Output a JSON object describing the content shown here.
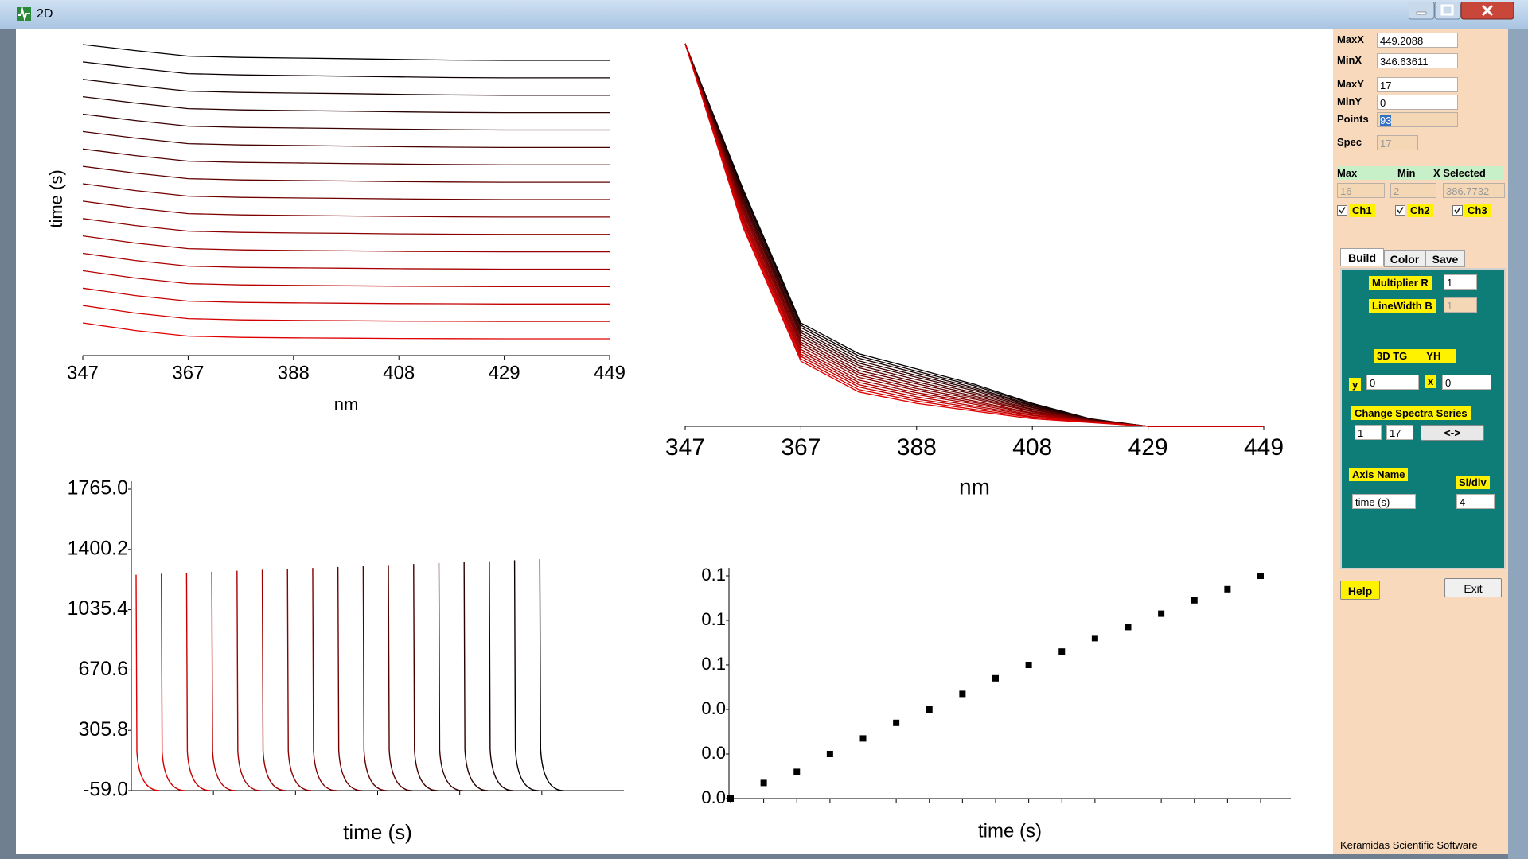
{
  "window": {
    "title": "2D"
  },
  "chart_data": [
    {
      "type": "waterfall",
      "ylabel": "time (s)",
      "xlabel": "nm",
      "xlim": [
        346.63611,
        449.2088
      ],
      "xticks": [
        {
          "value": 346.636,
          "label": "347"
        },
        {
          "value": 367.151,
          "label": "367"
        },
        {
          "value": 387.665,
          "label": "388"
        },
        {
          "value": 408.18,
          "label": "408"
        },
        {
          "value": 428.694,
          "label": "429"
        },
        {
          "value": 449.209,
          "label": "449"
        }
      ]
    },
    {
      "type": "line",
      "xlabel": "nm",
      "xlim": [
        346.63611,
        449.2088
      ],
      "ylim": [
        0,
        1
      ],
      "xticks": [
        {
          "value": 346.636,
          "label": "347"
        },
        {
          "value": 367.151,
          "label": "367"
        },
        {
          "value": 387.665,
          "label": "388"
        },
        {
          "value": 408.18,
          "label": "408"
        },
        {
          "value": 428.694,
          "label": "429"
        },
        {
          "value": 449.209,
          "label": "449"
        }
      ],
      "x": [
        346.636,
        356.894,
        367.151,
        377.408,
        387.665,
        397.922,
        408.18,
        418.437,
        428.694,
        438.951,
        449.209
      ],
      "series": [
        {
          "color": "#000000",
          "values": [
            1,
            0.62,
            0.27,
            0.19,
            0.15,
            0.11,
            0.06,
            0.02,
            0,
            0,
            0
          ]
        },
        {
          "color": "#0e0000",
          "values": [
            1,
            0.614,
            0.264,
            0.184,
            0.144,
            0.106,
            0.058,
            0.019,
            0,
            0,
            0
          ]
        },
        {
          "color": "#1c0000",
          "values": [
            1,
            0.608,
            0.258,
            0.178,
            0.139,
            0.101,
            0.055,
            0.019,
            0,
            0,
            0
          ]
        },
        {
          "color": "#2a0000",
          "values": [
            1,
            0.601,
            0.251,
            0.171,
            0.133,
            0.097,
            0.053,
            0.018,
            0,
            0,
            0
          ]
        },
        {
          "color": "#380000",
          "values": [
            1,
            0.595,
            0.245,
            0.165,
            0.128,
            0.093,
            0.05,
            0.018,
            0,
            0,
            0
          ]
        },
        {
          "color": "#460000",
          "values": [
            1,
            0.589,
            0.239,
            0.159,
            0.122,
            0.088,
            0.048,
            0.017,
            0,
            0,
            0
          ]
        },
        {
          "color": "#540000",
          "values": [
            1,
            0.583,
            0.233,
            0.153,
            0.116,
            0.084,
            0.045,
            0.016,
            0,
            0,
            0
          ]
        },
        {
          "color": "#620000",
          "values": [
            1,
            0.576,
            0.226,
            0.146,
            0.111,
            0.079,
            0.043,
            0.016,
            0,
            0,
            0
          ]
        },
        {
          "color": "#700000",
          "values": [
            1,
            0.57,
            0.22,
            0.14,
            0.105,
            0.075,
            0.04,
            0.015,
            0,
            0,
            0
          ]
        },
        {
          "color": "#7e0000",
          "values": [
            1,
            0.564,
            0.214,
            0.134,
            0.099,
            0.071,
            0.038,
            0.014,
            0,
            0,
            0
          ]
        },
        {
          "color": "#8c0000",
          "values": [
            1,
            0.558,
            0.208,
            0.128,
            0.094,
            0.066,
            0.035,
            0.014,
            0,
            0,
            0
          ]
        },
        {
          "color": "#9a0000",
          "values": [
            1,
            0.551,
            0.201,
            0.121,
            0.088,
            0.062,
            0.033,
            0.013,
            0,
            0,
            0
          ]
        },
        {
          "color": "#a80000",
          "values": [
            1,
            0.545,
            0.195,
            0.115,
            0.083,
            0.058,
            0.03,
            0.013,
            0,
            0,
            0
          ]
        },
        {
          "color": "#b60000",
          "values": [
            1,
            0.539,
            0.189,
            0.109,
            0.077,
            0.053,
            0.028,
            0.012,
            0,
            0,
            0
          ]
        },
        {
          "color": "#c40000",
          "values": [
            1,
            0.533,
            0.183,
            0.103,
            0.071,
            0.049,
            0.025,
            0.011,
            0,
            0,
            0
          ]
        },
        {
          "color": "#d20000",
          "values": [
            1,
            0.526,
            0.176,
            0.096,
            0.066,
            0.044,
            0.023,
            0.011,
            0,
            0,
            0
          ]
        },
        {
          "color": "#e00000",
          "values": [
            1,
            0.52,
            0.17,
            0.09,
            0.06,
            0.04,
            0.02,
            0.01,
            0,
            0,
            0
          ]
        }
      ]
    },
    {
      "type": "kinetics",
      "xlabel": "time (s)",
      "ylim": [
        -59,
        1765
      ],
      "yticks": [
        {
          "value": 1765,
          "label": "1765.0"
        },
        {
          "value": 1400.2,
          "label": "1400.2"
        },
        {
          "value": 1035.4,
          "label": "1035.4"
        },
        {
          "value": 670.6,
          "label": "670.6"
        },
        {
          "value": 305.8,
          "label": "305.8"
        },
        {
          "value": -59,
          "label": "-59.0"
        }
      ],
      "values": [
        1247,
        1253,
        1259,
        1265,
        1271,
        1277,
        1283,
        1288,
        1294,
        1300,
        1306,
        1312,
        1318,
        1324,
        1329,
        1335,
        1341
      ],
      "colors": [
        "#e00000",
        "#d20000",
        "#c40000",
        "#b60000",
        "#a80000",
        "#9a0000",
        "#8c0000",
        "#7e0000",
        "#700000",
        "#620000",
        "#540000",
        "#460000",
        "#380000",
        "#2a0000",
        "#1c0000",
        "#0e0000",
        "#000000"
      ]
    },
    {
      "type": "scatter",
      "xlabel": "time (s)",
      "ylim": [
        0,
        0.1
      ],
      "color": "#000000",
      "yticks": [
        {
          "value": 0,
          "label": "0.0"
        },
        {
          "value": 0.02,
          "label": "0.0"
        },
        {
          "value": 0.04,
          "label": "0.0"
        },
        {
          "value": 0.06,
          "label": "0.1"
        },
        {
          "value": 0.08,
          "label": "0.1"
        },
        {
          "value": 0.1,
          "label": "0.1"
        }
      ],
      "categories": [
        null,
        null,
        null,
        null,
        null,
        null,
        null,
        null,
        null,
        null,
        null,
        null,
        null,
        null,
        null,
        null,
        null
      ],
      "values": [
        0,
        0.007,
        0.012,
        0.02,
        0.027,
        0.034,
        0.04,
        0.047,
        0.054,
        0.06,
        0.066,
        0.072,
        0.077,
        0.083,
        0.089,
        0.094,
        0.1
      ]
    }
  ],
  "panel": {
    "fields": [
      {
        "label": "MaxX",
        "value": "449.2088"
      },
      {
        "label": "MinX",
        "value": "346.63611"
      },
      {
        "label": "MaxY",
        "value": "17"
      },
      {
        "label": "MinY",
        "value": "0"
      },
      {
        "label": "Points",
        "value": "93"
      },
      {
        "label": "Spec",
        "value": "17"
      }
    ],
    "header": [
      "Max",
      "Min",
      "X Selected"
    ],
    "selected": [
      "16",
      "2",
      "386.7732"
    ],
    "channels": [
      "Ch1",
      "Ch2",
      "Ch3"
    ],
    "tabs": [
      "Build",
      "Color",
      "Save"
    ],
    "build": {
      "multiplier_label": "Multiplier R",
      "multiplier": "1",
      "linewidth_label": "LineWidth B",
      "linewidth": "1",
      "mode_labels": [
        "3D TG",
        "YH"
      ],
      "y_label": "y",
      "y": "0",
      "x_label": "x",
      "x": "0",
      "series_label": "Change Spectra Series",
      "series_from": "1",
      "series_to": "17",
      "swap": "<->",
      "axis_name_label": "Axis Name",
      "axis_name": "time (s)",
      "sldiv_label": "Sl/div",
      "sldiv": "4"
    },
    "buttons": [
      "Help",
      "Exit"
    ]
  },
  "footer": "Keramidas Scientific Software"
}
